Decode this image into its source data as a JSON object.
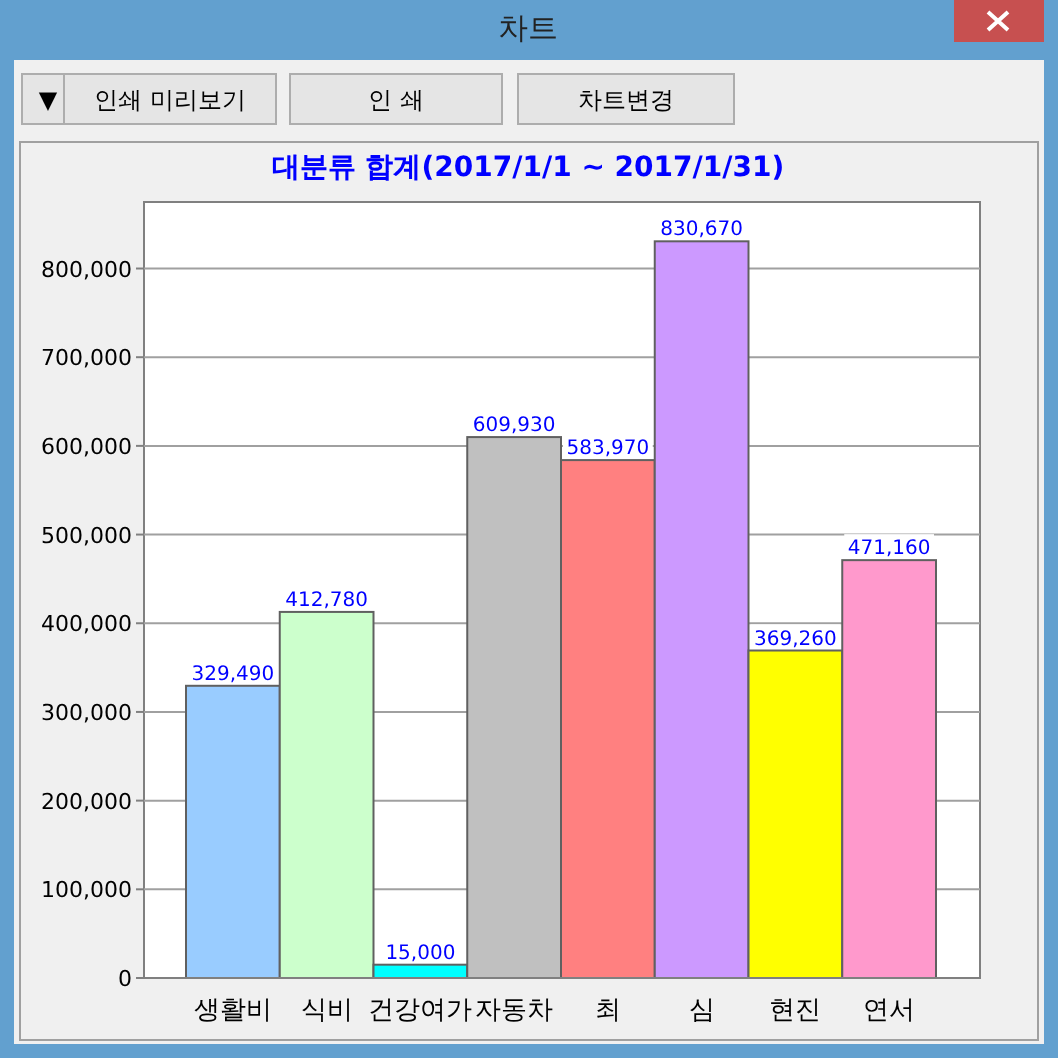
{
  "chart_data": {
    "type": "bar",
    "title": "대분류 합계(2017/1/1 ~ 2017/1/31)",
    "categories": [
      "생활비",
      "식비",
      "건강여가",
      "자동차",
      "최",
      "심",
      "현진",
      "연서"
    ],
    "values": [
      329490,
      412780,
      15000,
      609930,
      583970,
      830670,
      369260,
      471160
    ],
    "colors": [
      "#99ccff",
      "#ccffcc",
      "#00ffff",
      "#c0c0c0",
      "#ff8080",
      "#cc99ff",
      "#ffff00",
      "#ff99cc"
    ],
    "value_labels": [
      "329,490",
      "412,780",
      "15,000",
      "609,930",
      "583,970",
      "830,670",
      "369,260",
      "471,160"
    ],
    "grid": "y",
    "ylim": [
      0,
      875000
    ],
    "yticks": [
      {
        "value": 0,
        "label": "0"
      },
      {
        "value": 100000,
        "label": "100,000"
      },
      {
        "value": 200000,
        "label": "200,000"
      },
      {
        "value": 300000,
        "label": "300,000"
      },
      {
        "value": 400000,
        "label": "400,000"
      },
      {
        "value": 500000,
        "label": "500,000"
      },
      {
        "value": 600000,
        "label": "600,000"
      },
      {
        "value": 700000,
        "label": "700,000"
      },
      {
        "value": 800000,
        "label": "800,000"
      }
    ],
    "annotations": [
      "차트",
      "▼",
      "인쇄 미리보기",
      "인 쇄",
      "차트변경"
    ]
  }
}
